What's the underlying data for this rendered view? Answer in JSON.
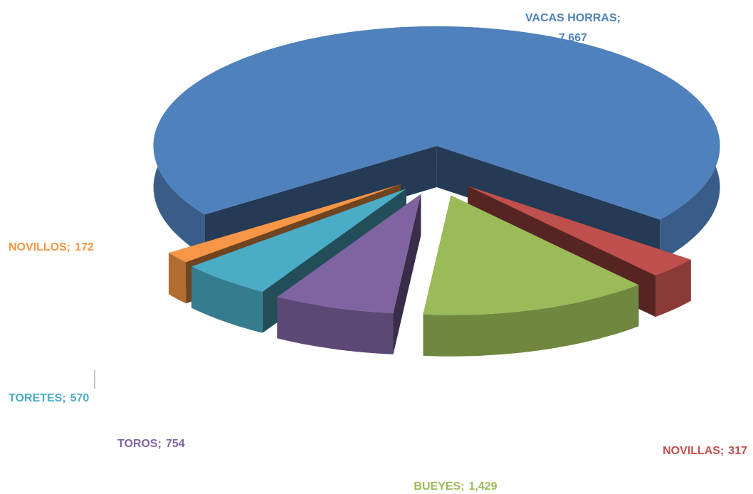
{
  "chart_data": {
    "type": "pie3d",
    "categories": [
      "VACAS HORRAS",
      "NOVILLAS",
      "BUEYES",
      "TOROS",
      "TORETES",
      "NOVILLOS"
    ],
    "values": [
      7667,
      317,
      1429,
      754,
      570,
      172
    ],
    "value_labels": [
      "7,667",
      "317",
      "1,429",
      "754",
      "570",
      "172"
    ],
    "label_separator": ";",
    "colors": [
      "#4f81bd",
      "#c0504d",
      "#9bbb59",
      "#8064a2",
      "#4bacc6",
      "#f79646"
    ]
  }
}
